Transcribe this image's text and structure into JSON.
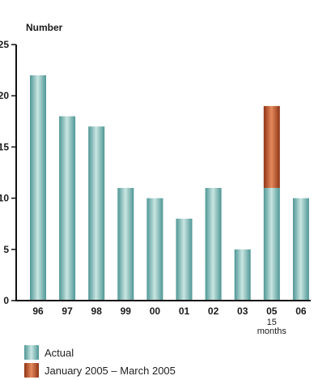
{
  "chart_data": {
    "type": "bar",
    "title": "",
    "ylabel": "Number",
    "xlabel": "",
    "ylim": [
      0,
      25
    ],
    "yticks": [
      0,
      5,
      10,
      15,
      20,
      25
    ],
    "categories": [
      "96",
      "97",
      "98",
      "99",
      "00",
      "01",
      "02",
      "03",
      "05",
      "06"
    ],
    "category_sublabels": {
      "05": "15\nmonths"
    },
    "series": [
      {
        "name": "Actual",
        "values": [
          22,
          18,
          17,
          11,
          10,
          8,
          11,
          5,
          11,
          10
        ]
      },
      {
        "name": "January 2005 – March 2005",
        "values": [
          0,
          0,
          0,
          0,
          0,
          0,
          0,
          0,
          8,
          0
        ]
      }
    ],
    "stacked": true,
    "legend_position": "bottom-left"
  },
  "colors": {
    "actual_dark": "#4e9695",
    "actual_light": "#c9e6e2",
    "period_dark": "#8e3414",
    "period_light": "#e58a5e",
    "axis": "#111111"
  },
  "legend": {
    "actual": "Actual",
    "period": "January 2005 – March 2005"
  }
}
